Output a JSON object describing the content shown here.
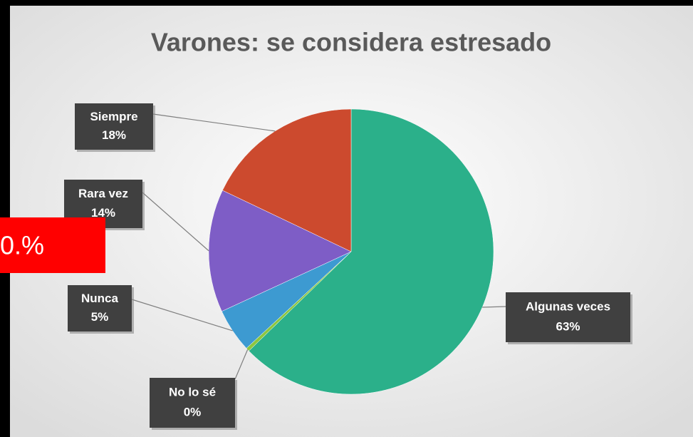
{
  "chart_data": {
    "type": "pie",
    "title": "Varones: se considera estresado",
    "categories": [
      "Algunas veces",
      "No lo sé",
      "Nunca",
      "Rara vez",
      "Siempre"
    ],
    "values": [
      63,
      0.4,
      5,
      14,
      18
    ],
    "value_labels": [
      "63%",
      "0%",
      "5%",
      "14%",
      "18%"
    ],
    "colors": [
      "#2bb08a",
      "#8dc63f",
      "#3d9ad1",
      "#7e5dc6",
      "#cc4a2e"
    ],
    "annotation": "0.%"
  }
}
